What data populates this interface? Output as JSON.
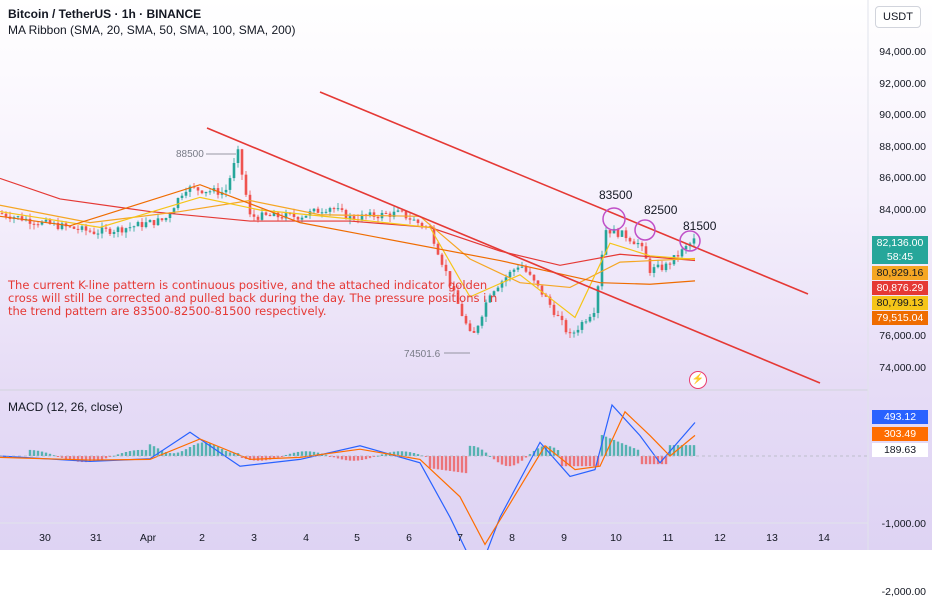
{
  "header": {
    "title": "Bitcoin / TetherUS · 1h · BINANCE",
    "indicator": "MA Ribbon (SMA, 20, SMA, 50, SMA, 100, SMA, 200)",
    "currency_button": "USDT"
  },
  "annotation_text": "The current K-line pattern is continuous positive, and the attached indicator golden cross will still be corrected and pulled back during the day. The pressure positions i n the trend pattern are 83500-82500-81500 respectively.",
  "callouts": {
    "high": "88500",
    "low": "74501.6"
  },
  "pressure_labels": [
    "83500",
    "82500",
    "81500"
  ],
  "price_axis": [
    "94,000.00",
    "92,000.00",
    "90,000.00",
    "88,000.00",
    "86,000.00",
    "84,000.00",
    "76,000.00",
    "74,000.00"
  ],
  "price_badges": [
    {
      "label": "82,136.00",
      "color": "#26a69a"
    },
    {
      "label": "58:45",
      "color": "#26a69a"
    },
    {
      "label": "80,929.16",
      "color": "#f5a623"
    },
    {
      "label": "80,876.29",
      "color": "#e53935"
    },
    {
      "label": "80,799.13",
      "color": "#f5c518"
    },
    {
      "label": "79,515.04",
      "color": "#ef6c00"
    }
  ],
  "macd": {
    "label": "MACD (12, 26, close)",
    "axis": [
      "-1,000.00",
      "-2,000.00"
    ],
    "badges": [
      {
        "label": "493.12",
        "color": "#2962ff"
      },
      {
        "label": "303.49",
        "color": "#ff6d00"
      },
      {
        "label": "189.63",
        "color": "#ffffff"
      }
    ]
  },
  "x_axis": [
    "30",
    "31",
    "Apr",
    "2",
    "3",
    "4",
    "5",
    "6",
    "7",
    "8",
    "9",
    "10",
    "11",
    "12",
    "13",
    "14"
  ],
  "chart_data": {
    "type": "candlestick",
    "symbol": "BTC/USDT",
    "interval": "1h",
    "ylim": [
      73500,
      95000
    ],
    "x": [
      "30",
      "31",
      "Apr",
      "2",
      "3",
      "4",
      "5",
      "6",
      "7",
      "8",
      "9",
      "10",
      "11",
      "12",
      "13",
      "14"
    ],
    "close_approx": [
      83600,
      82700,
      82600,
      85500,
      83600,
      83800,
      83700,
      82900,
      76500,
      79000,
      76800,
      81800,
      82136,
      null,
      null,
      null
    ],
    "last_price": 82136,
    "ma_ribbon": {
      "SMA20": 80929.16,
      "SMA50": 80876.29,
      "SMA100": 80799.13,
      "SMA200": 79515.04
    },
    "macd": {
      "macd": 493.12,
      "signal": 303.49,
      "histogram": 189.63
    }
  }
}
